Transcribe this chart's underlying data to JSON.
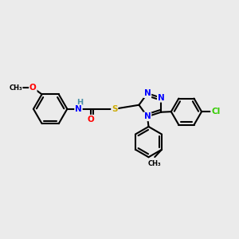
{
  "background_color": "#ebebeb",
  "atom_colors": {
    "N": "#0000ff",
    "O": "#ff0000",
    "S": "#ccaa00",
    "Cl": "#33cc00",
    "C": "#000000",
    "H": "#4a8fa8"
  },
  "bond_color": "#000000",
  "bond_width": 1.5,
  "figsize": [
    3.0,
    3.0
  ],
  "dpi": 100
}
